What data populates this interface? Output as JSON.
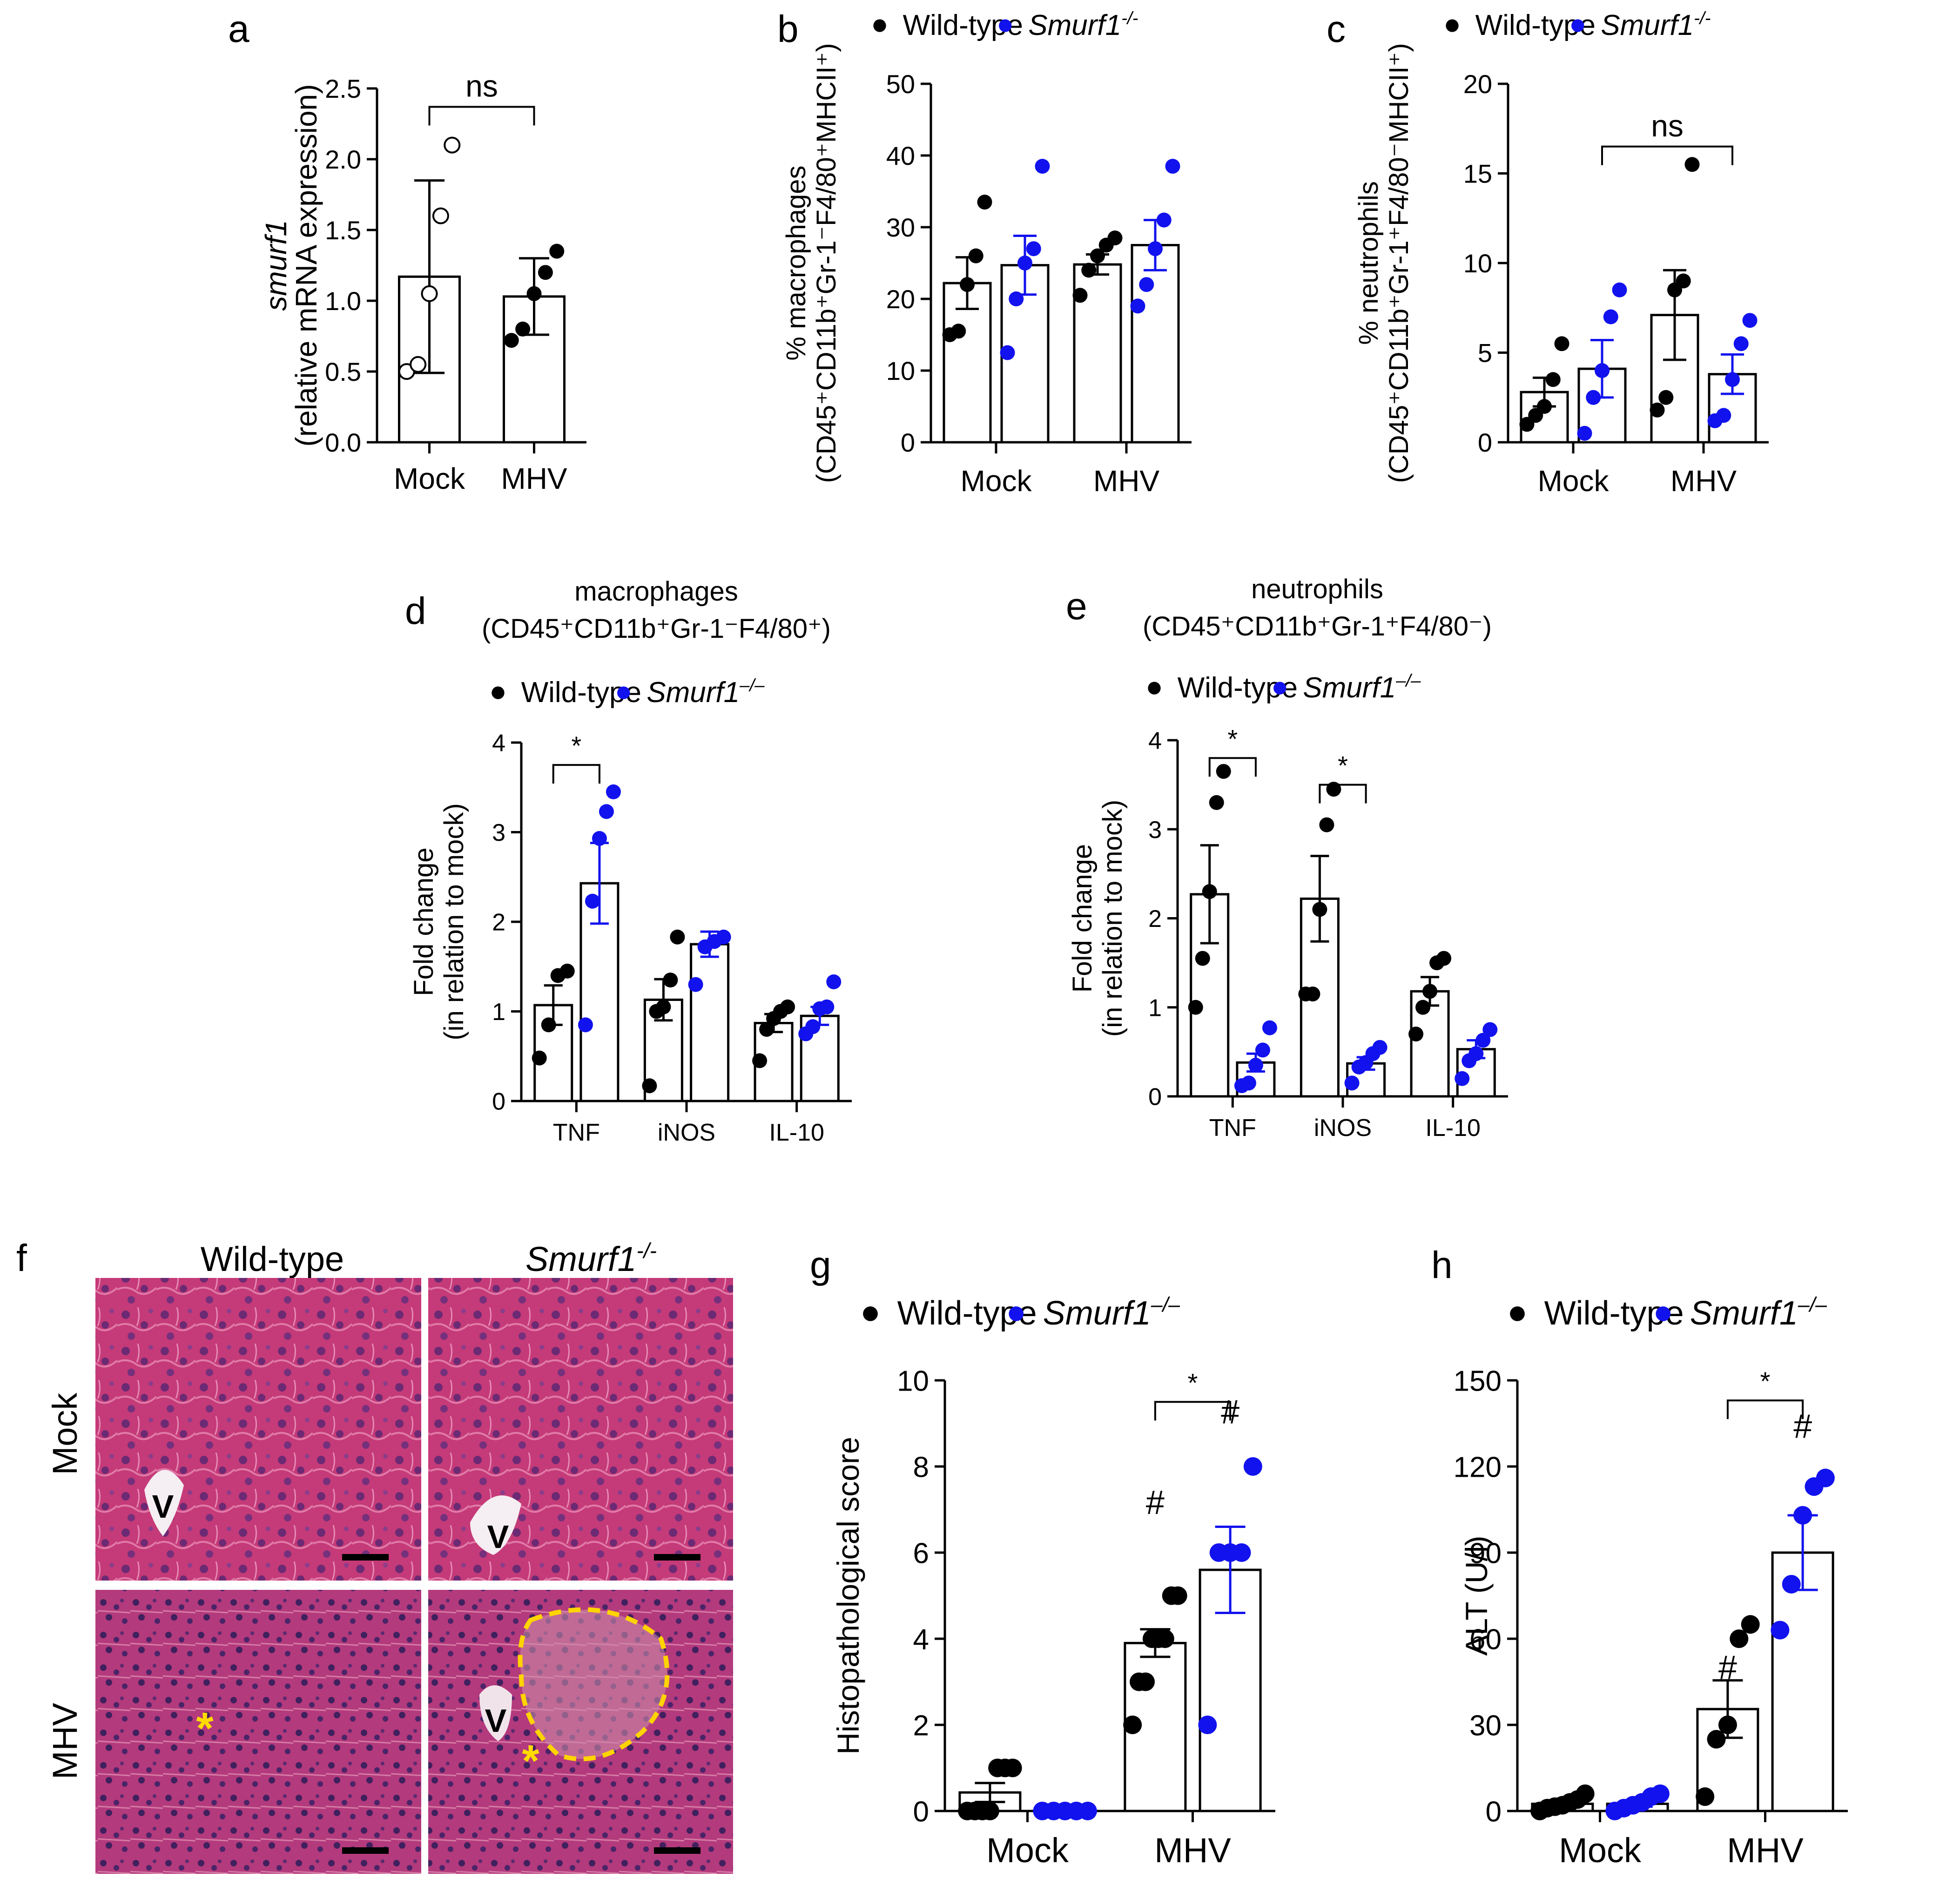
{
  "colors": {
    "wt": "#000000",
    "ko": "#1212ee",
    "axis": "#000000",
    "bar_fill": "#ffffff"
  },
  "legend": {
    "wt": "Wild-type",
    "ko_base": "Smurf1",
    "ko_sup_a": "-/-",
    "ko_sup_b": "–/–"
  },
  "chart_data": [
    {
      "id": "a",
      "letter": "a",
      "type": "bar",
      "title": "",
      "ylabel_lines": [
        "smurf1",
        "(relative mRNA expression)"
      ],
      "ylim": [
        0,
        2.5
      ],
      "yticks": [
        0.0,
        0.5,
        1.0,
        1.5,
        2.0,
        2.5
      ],
      "ytick_labels": [
        "0.0",
        "0.5",
        "1.0",
        "1.5",
        "2.0",
        "2.5"
      ],
      "categories": [
        "Mock",
        "MHV"
      ],
      "series": [
        {
          "name": "Mock/MHV",
          "color": "#000000",
          "bars": [
            {
              "mean": 1.17,
              "err": 0.68,
              "points": [
                0.5,
                0.55,
                1.05,
                1.6,
                2.1
              ],
              "hollow": true
            },
            {
              "mean": 1.03,
              "err": 0.27,
              "points": [
                0.72,
                0.8,
                1.05,
                1.2,
                1.35
              ],
              "hollow": false
            }
          ]
        }
      ],
      "annotations": [
        {
          "text": "ns",
          "from": [
            0,
            0
          ],
          "to": [
            1,
            0
          ],
          "level": 2.37
        }
      ]
    },
    {
      "id": "b",
      "letter": "b",
      "type": "bar",
      "title": "",
      "ylabel_lines": [
        "% macrophages",
        "(CD45⁺CD11b⁺Gr-1⁻F4/80⁺MHCII⁺)"
      ],
      "ylim": [
        0,
        50
      ],
      "yticks": [
        0,
        10,
        20,
        30,
        40,
        50
      ],
      "ytick_labels": [
        "0",
        "10",
        "20",
        "30",
        "40",
        "50"
      ],
      "categories": [
        "Mock",
        "MHV"
      ],
      "series": [
        {
          "name": "Wild-type",
          "color": "#000000",
          "bars": [
            {
              "mean": 22.2,
              "err": 3.6,
              "points": [
                15.0,
                15.5,
                22.0,
                26.0,
                33.5
              ]
            },
            {
              "mean": 24.8,
              "err": 1.4,
              "points": [
                20.5,
                24.0,
                26.0,
                27.5,
                28.5
              ]
            }
          ]
        },
        {
          "name": "Smurf1-/-",
          "color": "#1212ee",
          "bars": [
            {
              "mean": 24.7,
              "err": 4.1,
              "points": [
                12.5,
                20.0,
                25.0,
                27.0,
                38.5
              ]
            },
            {
              "mean": 27.5,
              "err": 3.5,
              "points": [
                19.0,
                22.0,
                27.0,
                31.0,
                38.5
              ]
            }
          ]
        }
      ],
      "annotations": []
    },
    {
      "id": "c",
      "letter": "c",
      "type": "bar",
      "title": "",
      "ylabel_lines": [
        "% neutrophils",
        "(CD45⁺CD11b⁺Gr-1⁺F4/80⁻MHCII⁺)"
      ],
      "ylim": [
        0,
        20
      ],
      "yticks": [
        0,
        5,
        10,
        15,
        20
      ],
      "ytick_labels": [
        "0",
        "5",
        "10",
        "15",
        "20"
      ],
      "categories": [
        "Mock",
        "MHV"
      ],
      "series": [
        {
          "name": "Wild-type",
          "color": "#000000",
          "bars": [
            {
              "mean": 2.8,
              "err": 0.8,
              "points": [
                1.0,
                1.5,
                2.0,
                3.5,
                5.5
              ]
            },
            {
              "mean": 7.1,
              "err": 2.5,
              "points": [
                1.8,
                2.5,
                8.5,
                9.0,
                15.5
              ]
            }
          ]
        },
        {
          "name": "Smurf1-/-",
          "color": "#1212ee",
          "bars": [
            {
              "mean": 4.1,
              "err": 1.6,
              "points": [
                0.5,
                2.5,
                4.0,
                7.0,
                8.5
              ]
            },
            {
              "mean": 3.8,
              "err": 1.1,
              "points": [
                1.2,
                1.5,
                3.5,
                5.5,
                6.8
              ]
            }
          ]
        }
      ],
      "annotations": [
        {
          "text": "ns",
          "from": [
            0,
            1
          ],
          "to": [
            1,
            1
          ],
          "level": 16.5
        }
      ]
    },
    {
      "id": "d",
      "letter": "d",
      "type": "bar",
      "title_lines": [
        "macrophages",
        "(CD45⁺CD11b⁺Gr-1⁻F4/80⁺)"
      ],
      "ylabel_lines": [
        "Fold change",
        "(in relation to mock)"
      ],
      "ylim": [
        0,
        4
      ],
      "yticks": [
        0,
        1,
        2,
        3,
        4
      ],
      "ytick_labels": [
        "0",
        "1",
        "2",
        "3",
        "4"
      ],
      "categories": [
        "TNF",
        "iNOS",
        "IL-10"
      ],
      "series": [
        {
          "name": "Wild-type",
          "color": "#000000",
          "bars": [
            {
              "mean": 1.07,
              "err": 0.22,
              "points": [
                0.48,
                0.85,
                1.4,
                1.45
              ]
            },
            {
              "mean": 1.13,
              "err": 0.23,
              "points": [
                0.17,
                1.0,
                1.05,
                1.35,
                1.83
              ]
            },
            {
              "mean": 0.87,
              "err": 0.1,
              "points": [
                0.45,
                0.8,
                0.92,
                1.0,
                1.05
              ]
            }
          ]
        },
        {
          "name": "Smurf1-/-",
          "color": "#1212ee",
          "bars": [
            {
              "mean": 2.43,
              "err": 0.45,
              "points": [
                0.85,
                2.23,
                2.93,
                3.23,
                3.45
              ]
            },
            {
              "mean": 1.75,
              "err": 0.14,
              "points": [
                1.3,
                1.72,
                1.78,
                1.83
              ]
            },
            {
              "mean": 0.95,
              "err": 0.1,
              "points": [
                0.75,
                0.83,
                1.03,
                1.05,
                1.33
              ]
            }
          ]
        }
      ],
      "annotations": [
        {
          "text": "*",
          "from": [
            0,
            0
          ],
          "to": [
            0,
            1
          ],
          "level": 3.75
        }
      ]
    },
    {
      "id": "e",
      "letter": "e",
      "type": "bar",
      "title_lines": [
        "neutrophils",
        "(CD45⁺CD11b⁺Gr-1⁺F4/80⁻)"
      ],
      "ylabel_lines": [
        "Fold change",
        "(in relation to mock)"
      ],
      "ylim": [
        0,
        4
      ],
      "yticks": [
        0,
        1,
        2,
        3,
        4
      ],
      "ytick_labels": [
        "0",
        "1",
        "2",
        "3",
        "4"
      ],
      "categories": [
        "TNF",
        "iNOS",
        "IL-10"
      ],
      "series": [
        {
          "name": "Wild-type",
          "color": "#000000",
          "bars": [
            {
              "mean": 2.27,
              "err": 0.55,
              "points": [
                1.0,
                1.55,
                2.3,
                3.3,
                3.65
              ]
            },
            {
              "mean": 2.22,
              "err": 0.48,
              "points": [
                1.15,
                1.15,
                2.1,
                3.05,
                3.45
              ]
            },
            {
              "mean": 1.18,
              "err": 0.16,
              "points": [
                0.7,
                1.0,
                1.18,
                1.5,
                1.55
              ]
            }
          ]
        },
        {
          "name": "Smurf1-/-",
          "color": "#1212ee",
          "bars": [
            {
              "mean": 0.38,
              "err": 0.1,
              "points": [
                0.12,
                0.15,
                0.35,
                0.52,
                0.77
              ]
            },
            {
              "mean": 0.37,
              "err": 0.07,
              "points": [
                0.15,
                0.33,
                0.38,
                0.48,
                0.55
              ]
            },
            {
              "mean": 0.53,
              "err": 0.1,
              "points": [
                0.2,
                0.4,
                0.48,
                0.63,
                0.75
              ]
            }
          ]
        }
      ],
      "annotations": [
        {
          "text": "*",
          "from": [
            0,
            0
          ],
          "to": [
            0,
            1
          ],
          "level": 3.8
        },
        {
          "text": "*",
          "from": [
            1,
            0
          ],
          "to": [
            1,
            1
          ],
          "level": 3.5
        }
      ]
    },
    {
      "id": "g",
      "letter": "g",
      "type": "bar",
      "title": "",
      "ylabel_lines": [
        "Histopathological score"
      ],
      "ylim": [
        0,
        10
      ],
      "yticks": [
        0,
        2,
        4,
        6,
        8,
        10
      ],
      "ytick_labels": [
        "0",
        "2",
        "4",
        "6",
        "8",
        "10"
      ],
      "categories": [
        "Mock",
        "MHV"
      ],
      "series": [
        {
          "name": "Wild-type",
          "color": "#000000",
          "bars": [
            {
              "mean": 0.43,
              "err": 0.22,
              "points": [
                0,
                0,
                0,
                0,
                1,
                1,
                1
              ]
            },
            {
              "mean": 3.9,
              "err": 0.32,
              "points": [
                2,
                3,
                3,
                4,
                4,
                4,
                5,
                5
              ]
            }
          ]
        },
        {
          "name": "Smurf1-/-",
          "color": "#1212ee",
          "bars": [
            {
              "mean": 0.0,
              "err": 0.0,
              "points": [
                0,
                0,
                0,
                0,
                0
              ]
            },
            {
              "mean": 5.6,
              "err": 1.0,
              "points": [
                2,
                6,
                6,
                6,
                8
              ]
            }
          ]
        }
      ],
      "marks": [
        {
          "text": "#",
          "group": 1,
          "series": 0,
          "value": 6.9
        },
        {
          "text": "#",
          "group": 1,
          "series": 1,
          "value": 9.0
        }
      ],
      "annotations": [
        {
          "text": "*",
          "from": [
            1,
            0
          ],
          "to": [
            1,
            1
          ],
          "level": 9.5
        }
      ]
    },
    {
      "id": "h",
      "letter": "h",
      "type": "bar",
      "title": "",
      "ylabel_lines": [
        "ALT (U/l)"
      ],
      "ylim": [
        0,
        150
      ],
      "yticks": [
        0,
        30,
        60,
        90,
        120,
        150
      ],
      "ytick_labels": [
        "0",
        "30",
        "60",
        "90",
        "120",
        "150"
      ],
      "categories": [
        "Mock",
        "MHV"
      ],
      "series": [
        {
          "name": "Wild-type",
          "color": "#000000",
          "bars": [
            {
              "mean": 2.5,
              "err": 0.9,
              "points": [
                0,
                1,
                1.5,
                2,
                3,
                4,
                6
              ]
            },
            {
              "mean": 35.5,
              "err": 10.0,
              "points": [
                5,
                25,
                30,
                60,
                65
              ]
            }
          ]
        },
        {
          "name": "Smurf1-/-",
          "color": "#1212ee",
          "bars": [
            {
              "mean": 2.5,
              "err": 1.0,
              "points": [
                0,
                1,
                2,
                3,
                5,
                6
              ]
            },
            {
              "mean": 90.0,
              "err": 13.0,
              "points": [
                63,
                79,
                103,
                113,
                116
              ]
            }
          ]
        }
      ],
      "marks": [
        {
          "text": "#",
          "group": 1,
          "series": 0,
          "value": 46
        },
        {
          "text": "#",
          "group": 1,
          "series": 1,
          "value": 130
        }
      ],
      "annotations": [
        {
          "text": "*",
          "from": [
            1,
            0
          ],
          "to": [
            1,
            1
          ],
          "level": 143
        }
      ]
    }
  ],
  "panel_f": {
    "letter": "f",
    "col_labels": [
      "Wild-type",
      "Smurf1"
    ],
    "col_label_sup": "-/-",
    "row_labels": [
      "Mock",
      "MHV"
    ],
    "vessel_label": "V",
    "star_label": "*"
  }
}
